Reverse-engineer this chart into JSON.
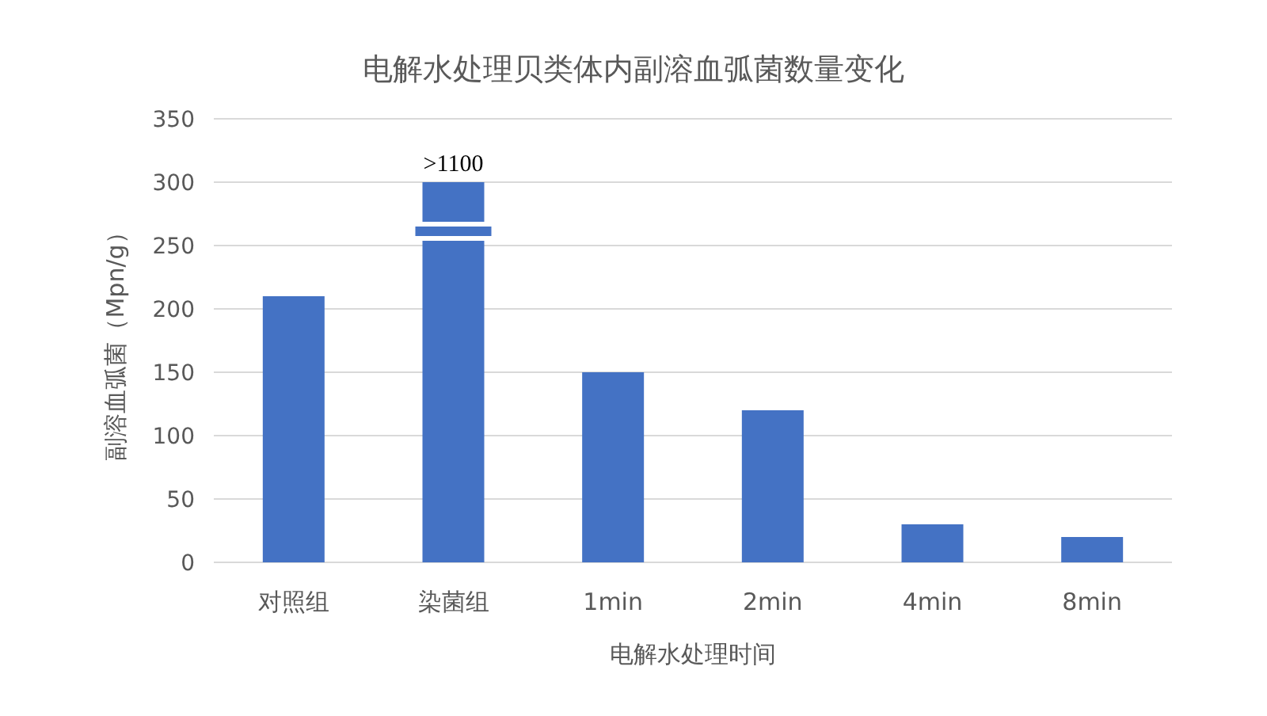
{
  "chart_data": {
    "type": "bar",
    "title": "电解水处理贝类体内副溶血弧菌数量变化",
    "xlabel": "电解水处理时间",
    "ylabel": "副溶血弧菌（Mpn/g）",
    "categories": [
      "对照组",
      "染菌组",
      "1min",
      "2min",
      "4min",
      "8min"
    ],
    "values": [
      210,
      300,
      150,
      120,
      30,
      20
    ],
    "color": "#4472c4",
    "ylim": [
      0,
      350
    ],
    "yticks": [
      0,
      50,
      100,
      150,
      200,
      250,
      300,
      350
    ],
    "grid": "y",
    "annotations": [
      {
        "text": ">1100",
        "x": "染菌组",
        "y": 300
      }
    ]
  }
}
